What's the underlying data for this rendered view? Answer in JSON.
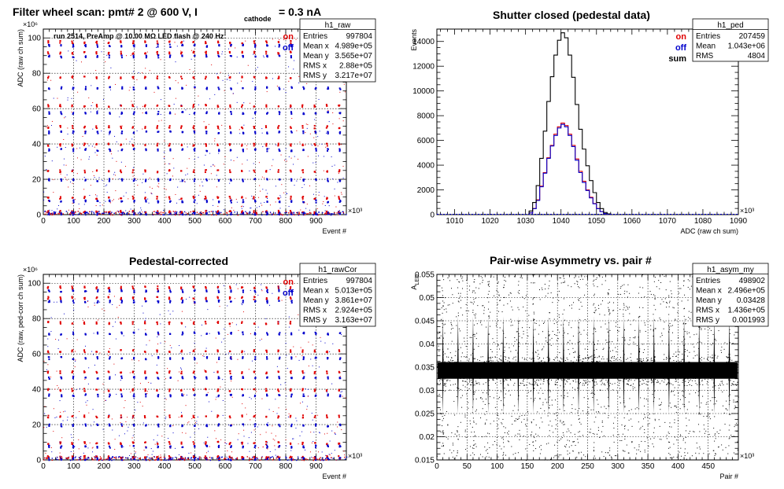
{
  "chart_data": [
    {
      "id": "raw",
      "type": "scatter",
      "title": "Filter wheel scan: pmt#   2 @   600 V, I",
      "title_subscript": "cathode",
      "title_suffix": "= 0.3 nA",
      "xlabel": "Event #",
      "ylabel": "ADC (raw ch sum)",
      "x_multiplier": "×10³",
      "y_multiplier": "×10⁶",
      "xlim": [
        0,
        1000
      ],
      "ylim": [
        0,
        105
      ],
      "xticks": [
        0,
        100,
        200,
        300,
        400,
        500,
        600,
        700,
        800,
        900
      ],
      "yticks": [
        0,
        20,
        40,
        60,
        80,
        100
      ],
      "grid": true,
      "annotation": "run 2514, PreAmp @ 10.00 MΩ LED flash @  240 Hz:",
      "legend": {
        "entries": [
          "on",
          "off"
        ],
        "colors": [
          "#e00000",
          "#0000cc"
        ],
        "placement": "top-right"
      },
      "stats": {
        "name": "h1_raw",
        "rows": [
          [
            "Entries",
            "997804"
          ],
          [
            "Mean x",
            "4.989e+05"
          ],
          [
            "Mean y",
            "3.565e+07"
          ],
          [
            "RMS x",
            "2.88e+05"
          ],
          [
            "RMS y",
            "3.217e+07"
          ]
        ]
      },
      "levels_on": [
        98,
        92,
        78,
        62,
        50,
        40,
        25,
        10,
        2
      ],
      "levels_off": [
        96,
        90,
        72,
        58,
        47,
        37,
        20,
        8,
        1
      ],
      "pattern_period": 40
    },
    {
      "id": "ped",
      "type": "histogram",
      "title": "Shutter closed (pedestal data)",
      "xlabel": "ADC (raw ch sum)",
      "ylabel": "Events",
      "x_multiplier": "×10³",
      "xlim": [
        1005,
        1090
      ],
      "ylim": [
        0,
        15000
      ],
      "xticks": [
        1010,
        1020,
        1030,
        1040,
        1050,
        1060,
        1070,
        1080,
        1090
      ],
      "yticks": [
        0,
        2000,
        4000,
        6000,
        8000,
        10000,
        12000,
        14000
      ],
      "grid": false,
      "bin_width": 1,
      "bin_start": 1031,
      "series": [
        {
          "name": "on",
          "color": "#e00000",
          "values": [
            150,
            500,
            1200,
            2300,
            3400,
            4600,
            5600,
            6500,
            7100,
            7400,
            7200,
            6500,
            5600,
            4500,
            3500,
            2700,
            2000,
            1400,
            900,
            500,
            250,
            90,
            30
          ]
        },
        {
          "name": "off",
          "color": "#0000cc",
          "values": [
            140,
            480,
            1150,
            2250,
            3350,
            4550,
            5550,
            6400,
            7000,
            7300,
            7100,
            6400,
            5500,
            4400,
            3400,
            2600,
            1950,
            1350,
            880,
            480,
            240,
            85,
            28
          ]
        },
        {
          "name": "sum",
          "color": "#000000",
          "values": [
            290,
            980,
            2350,
            4550,
            6750,
            9150,
            11150,
            12900,
            14100,
            14700,
            14300,
            12900,
            11100,
            8900,
            6900,
            5300,
            3950,
            2750,
            1780,
            980,
            490,
            175,
            58
          ]
        }
      ],
      "legend": {
        "entries": [
          "on",
          "off",
          "sum"
        ],
        "colors": [
          "#e00000",
          "#0000cc",
          "#000000"
        ],
        "placement": "top-right"
      },
      "stats": {
        "name": "h1_ped",
        "rows": [
          [
            "Entries",
            "207459"
          ],
          [
            "Mean",
            "1.043e+06"
          ],
          [
            "RMS",
            "4804"
          ]
        ]
      }
    },
    {
      "id": "cor",
      "type": "scatter",
      "title": "Pedestal-corrected",
      "xlabel": "Event #",
      "ylabel": "ADC (raw, ped-corr ch sum)",
      "x_multiplier": "×10³",
      "y_multiplier": "×10⁶",
      "xlim": [
        0,
        1000
      ],
      "ylim": [
        0,
        105
      ],
      "xticks": [
        0,
        100,
        200,
        300,
        400,
        500,
        600,
        700,
        800,
        900
      ],
      "yticks": [
        0,
        20,
        40,
        60,
        80,
        100
      ],
      "grid": true,
      "legend": {
        "entries": [
          "on",
          "off"
        ],
        "colors": [
          "#e00000",
          "#0000cc"
        ],
        "placement": "top-right"
      },
      "stats": {
        "name": "h1_rawCor",
        "rows": [
          [
            "Entries",
            "997804"
          ],
          [
            "Mean x",
            "5.013e+05"
          ],
          [
            "Mean y",
            "3.861e+07"
          ],
          [
            "RMS x",
            "2.924e+05"
          ],
          [
            "RMS y",
            "3.163e+07"
          ]
        ]
      },
      "levels_on": [
        98,
        92,
        78,
        62,
        50,
        40,
        25,
        10,
        2
      ],
      "levels_off": [
        96,
        90,
        72,
        58,
        47,
        37,
        20,
        8,
        1
      ],
      "pattern_period": 40
    },
    {
      "id": "asym",
      "type": "scatter",
      "title": "Pair-wise Asymmetry vs. pair #",
      "xlabel": "Pair #",
      "ylabel": "A",
      "ylabel_sub": "LED",
      "x_multiplier": "×10³",
      "xlim": [
        0,
        500
      ],
      "ylim": [
        0.015,
        0.055
      ],
      "xticks": [
        0,
        50,
        100,
        150,
        200,
        250,
        300,
        350,
        400,
        450
      ],
      "yticks": [
        0.015,
        0.02,
        0.025,
        0.03,
        0.035,
        0.04,
        0.045,
        0.05,
        0.055
      ],
      "ytick_labels": [
        "0.015",
        "0.02",
        "0.025",
        "0.03",
        "0.035",
        "0.04",
        "0.045",
        "0.05",
        "0.055"
      ],
      "grid": true,
      "band_center": 0.0343,
      "band_halfwidth": 0.002,
      "spike_period": 25,
      "stats": {
        "name": "h1_asym_my",
        "rows": [
          [
            "Entries",
            "498902"
          ],
          [
            "Mean x",
            "2.496e+05"
          ],
          [
            "Mean y",
            "0.03428"
          ],
          [
            "RMS x",
            "1.436e+05"
          ],
          [
            "RMS y",
            "0.001993"
          ]
        ]
      }
    }
  ]
}
